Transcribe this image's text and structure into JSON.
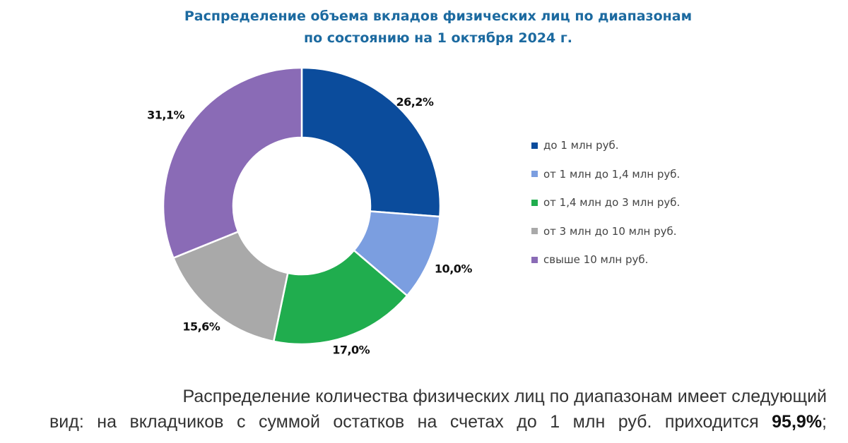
{
  "chart_data": {
    "type": "pie",
    "title": "Распределение объема вкладов физических лиц по диапазонам",
    "subtitle": "по состоянию на 1 октября 2024 г.",
    "categories": [
      "до 1 млн руб.",
      "от 1 млн до 1,4 млн руб.",
      "от 1,4 млн до 3 млн руб.",
      "от 3 млн до 10 млн руб.",
      "свыше 10 млн руб."
    ],
    "values": [
      26.2,
      10.0,
      17.0,
      15.6,
      31.1
    ],
    "data_labels": [
      "26,2%",
      "10,0%",
      "17,0%",
      "15,6%",
      "31,1%"
    ],
    "colors": [
      "#0b4c9c",
      "#7b9ee0",
      "#20ad4e",
      "#a9a9a9",
      "#8a6bb6"
    ],
    "donut": true,
    "legend_position": "right"
  },
  "text": {
    "line1": "Распределение количества физических лиц по диапазонам имеет следующий",
    "line2": "вид: на вкладчиков с суммой остатков на счетах до 1 млн руб. приходится",
    "highlight": "95,9%",
    "tail": ";"
  }
}
